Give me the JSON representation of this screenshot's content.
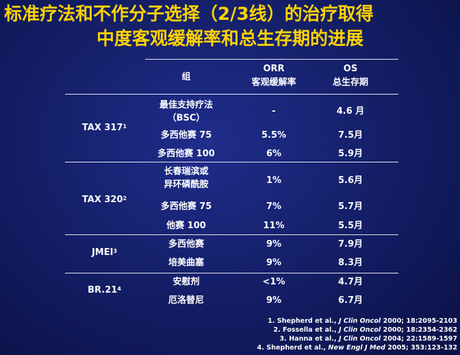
{
  "title": {
    "line1": "标准疗法和不作分子选择（2/3线）的治疗取得",
    "line2": "中度客观缓解率和总生存期的进展"
  },
  "table": {
    "headers": {
      "group": "组",
      "orr": "ORR",
      "orr_sub": "客观缓解率",
      "os": "OS",
      "os_sub": "总生存期"
    },
    "sections": [
      {
        "trial": "TAX 317",
        "ref": "1",
        "rows": [
          {
            "arm": "最佳支持疗法",
            "arm2": "（BSC）",
            "orr": "-",
            "os": "4.6 月"
          },
          {
            "arm": "多西他赛 75",
            "orr": "5.5%",
            "os": "7.5月"
          },
          {
            "arm": "多西他赛 100",
            "orr": "6%",
            "os": "5.9月"
          }
        ]
      },
      {
        "trial": "TAX 320",
        "ref": "2",
        "rows": [
          {
            "arm": "长春瑞滨或",
            "arm2": "异环磷酰胺",
            "orr": "1%",
            "os": "5.6月"
          },
          {
            "arm": "多西他赛 75",
            "orr": "7%",
            "os": "5.7月"
          },
          {
            "arm": "他赛 100",
            "orr": "11%",
            "os": "5.5月"
          }
        ]
      },
      {
        "trial": "JMEI",
        "ref": "3",
        "rows": [
          {
            "arm": "多西他赛",
            "orr": "9%",
            "os": "7.9月"
          },
          {
            "arm": "培美曲塞",
            "orr": "9%",
            "os": "8.3月"
          }
        ]
      },
      {
        "trial": "BR.21",
        "ref": "4",
        "rows": [
          {
            "arm": "安慰剂",
            "orr": "<1%",
            "os": "4.7月"
          },
          {
            "arm": "厄洛替尼",
            "orr": "9%",
            "os": "6.7月"
          }
        ]
      }
    ]
  },
  "references": [
    {
      "pre": "1. Shepherd et al., ",
      "journal": "J Clin Oncol",
      "post": " 2000; 18:2095-2103"
    },
    {
      "pre": "2. Fossella et al., ",
      "journal": "J Clin Oncol",
      "post": " 2000; 18:2354-2362"
    },
    {
      "pre": "3. Hanna et al., ",
      "journal": "J Clin Oncol",
      "post": " 2004; 22:1589-1597"
    },
    {
      "pre": "4. Shepherd et al., ",
      "journal": "New Engl J Med",
      "post": " 2005; 353:123-132"
    }
  ]
}
